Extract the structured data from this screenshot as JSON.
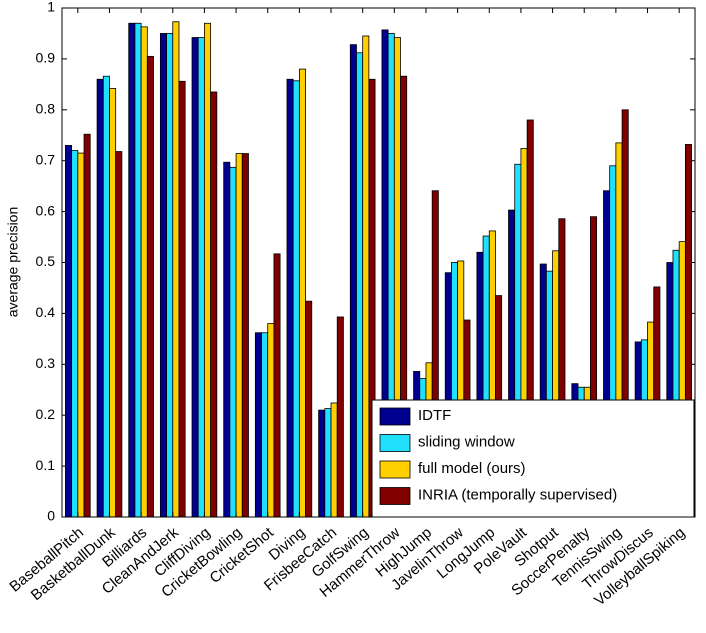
{
  "chart_data": {
    "type": "bar",
    "y_label": "average precision",
    "categories": [
      "BaseballPitch",
      "BasketballDunk",
      "Billiards",
      "CleanAndJerk",
      "CliffDiving",
      "CricketBowling",
      "CricketShot",
      "Diving",
      "FrisbeeCatch",
      "GolfSwing",
      "HammerThrow",
      "HighJump",
      "JavelinThrow",
      "LongJump",
      "PoleVault",
      "Shotput",
      "SoccerPenalty",
      "TennisSwing",
      "ThrowDiscus",
      "VolleyballSpiking"
    ],
    "series": [
      {
        "name": "IDTF",
        "color": "#00008f",
        "values": [
          0.73,
          0.86,
          0.97,
          0.95,
          0.942,
          0.697,
          0.362,
          0.86,
          0.21,
          0.928,
          0.957,
          0.286,
          0.48,
          0.52,
          0.603,
          0.497,
          0.262,
          0.641,
          0.344,
          0.5
        ]
      },
      {
        "name": "sliding window",
        "color": "#20dfff",
        "values": [
          0.72,
          0.866,
          0.97,
          0.95,
          0.942,
          0.687,
          0.362,
          0.857,
          0.213,
          0.912,
          0.95,
          0.272,
          0.5,
          0.552,
          0.693,
          0.483,
          0.255,
          0.69,
          0.348,
          0.524
        ]
      },
      {
        "name": "full model (ours)",
        "color": "#ffcf00",
        "values": [
          0.715,
          0.842,
          0.963,
          0.973,
          0.97,
          0.714,
          0.38,
          0.88,
          0.224,
          0.945,
          0.942,
          0.303,
          0.503,
          0.562,
          0.724,
          0.523,
          0.255,
          0.735,
          0.383,
          0.541
        ]
      },
      {
        "name": "INRIA (temporally supervised)",
        "color": "#800000",
        "values": [
          0.752,
          0.718,
          0.905,
          0.856,
          0.835,
          0.714,
          0.517,
          0.424,
          0.393,
          0.86,
          0.866,
          0.641,
          0.387,
          0.435,
          0.78,
          0.586,
          0.59,
          0.8,
          0.452,
          0.732
        ]
      }
    ],
    "ylim": [
      0,
      1
    ],
    "yticks": [
      0,
      0.1,
      0.2,
      0.3,
      0.4,
      0.5,
      0.6,
      0.7,
      0.8,
      0.9,
      1
    ],
    "legend_position": "lower right"
  }
}
